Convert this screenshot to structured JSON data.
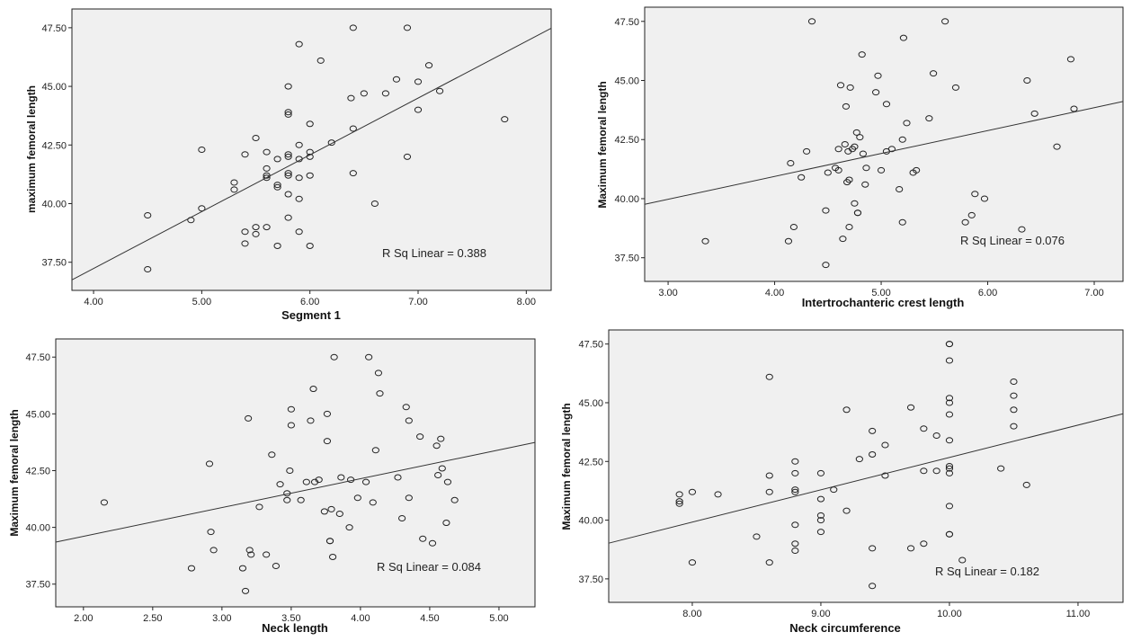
{
  "colors": {
    "plot_bg": "#f0f0f0",
    "point_stroke": "#222222",
    "fit_line": "#333333",
    "frame": "#222222"
  },
  "chart_data": [
    {
      "type": "scatter",
      "xlabel": "Segment 1",
      "ylabel": "maximum femoral length",
      "xlim": [
        3.8,
        8.23
      ],
      "ylim": [
        36.3,
        48.3
      ],
      "xticks": [
        4.0,
        5.0,
        6.0,
        7.0,
        8.0
      ],
      "xtick_labels": [
        "4.00",
        "5.00",
        "6.00",
        "7.00",
        "8.00"
      ],
      "yticks": [
        37.5,
        40.0,
        42.5,
        45.0,
        47.5
      ],
      "ytick_labels": [
        "37.50",
        "40.00",
        "42.50",
        "45.00",
        "47.50"
      ],
      "fit": {
        "x": [
          3.8,
          8.23
        ],
        "y": [
          36.75,
          47.48
        ]
      },
      "annotation": "R Sq Linear = 0.388",
      "points": [
        [
          4.5,
          37.2
        ],
        [
          4.5,
          39.5
        ],
        [
          4.9,
          39.3
        ],
        [
          5.0,
          39.8
        ],
        [
          5.0,
          42.3
        ],
        [
          5.3,
          40.9
        ],
        [
          5.3,
          40.6
        ],
        [
          5.4,
          38.8
        ],
        [
          5.4,
          38.3
        ],
        [
          5.4,
          42.1
        ],
        [
          5.5,
          42.8
        ],
        [
          5.5,
          38.7
        ],
        [
          5.5,
          39.0
        ],
        [
          5.6,
          39.0
        ],
        [
          5.6,
          41.1
        ],
        [
          5.6,
          41.2
        ],
        [
          5.6,
          41.5
        ],
        [
          5.6,
          42.2
        ],
        [
          5.7,
          38.2
        ],
        [
          5.7,
          40.7
        ],
        [
          5.7,
          40.8
        ],
        [
          5.7,
          41.9
        ],
        [
          5.8,
          39.4
        ],
        [
          5.8,
          40.4
        ],
        [
          5.8,
          41.2
        ],
        [
          5.8,
          41.3
        ],
        [
          5.8,
          42.0
        ],
        [
          5.8,
          42.1
        ],
        [
          5.8,
          43.8
        ],
        [
          5.8,
          43.9
        ],
        [
          5.8,
          45.0
        ],
        [
          5.9,
          38.8
        ],
        [
          5.9,
          40.2
        ],
        [
          5.9,
          41.1
        ],
        [
          5.9,
          41.9
        ],
        [
          5.9,
          42.5
        ],
        [
          5.9,
          46.8
        ],
        [
          6.0,
          38.2
        ],
        [
          6.0,
          41.2
        ],
        [
          6.0,
          42.0
        ],
        [
          6.0,
          42.2
        ],
        [
          6.0,
          43.4
        ],
        [
          6.1,
          46.1
        ],
        [
          6.2,
          42.6
        ],
        [
          6.4,
          41.3
        ],
        [
          6.4,
          43.2
        ],
        [
          6.4,
          47.5
        ],
        [
          6.38,
          44.5
        ],
        [
          6.5,
          44.7
        ],
        [
          6.6,
          40.0
        ],
        [
          6.7,
          44.7
        ],
        [
          6.8,
          45.3
        ],
        [
          6.9,
          42.0
        ],
        [
          6.9,
          47.5
        ],
        [
          7.0,
          44.0
        ],
        [
          7.0,
          45.2
        ],
        [
          7.1,
          45.9
        ],
        [
          7.2,
          44.8
        ],
        [
          7.8,
          43.6
        ]
      ]
    },
    {
      "type": "scatter",
      "xlabel": "Intertrochanteric crest length",
      "ylabel": "Maximum femoral length",
      "xlim": [
        2.78,
        7.27
      ],
      "ylim": [
        36.5,
        48.1
      ],
      "xticks": [
        3.0,
        4.0,
        5.0,
        6.0,
        7.0
      ],
      "xtick_labels": [
        "3.00",
        "4.00",
        "5.00",
        "6.00",
        "7.00"
      ],
      "yticks": [
        37.5,
        40.0,
        42.5,
        45.0,
        47.5
      ],
      "ytick_labels": [
        "37.50",
        "40.00",
        "42.50",
        "45.00",
        "47.50"
      ],
      "fit": {
        "x": [
          2.78,
          7.27
        ],
        "y": [
          39.76,
          44.11
        ]
      },
      "annotation": "R Sq Linear = 0.076",
      "points": [
        [
          3.35,
          38.2
        ],
        [
          4.13,
          38.2
        ],
        [
          4.15,
          41.5
        ],
        [
          4.18,
          38.8
        ],
        [
          4.25,
          40.9
        ],
        [
          4.3,
          42.0
        ],
        [
          4.35,
          47.5
        ],
        [
          4.48,
          37.2
        ],
        [
          4.48,
          39.5
        ],
        [
          4.5,
          41.1
        ],
        [
          4.57,
          41.3
        ],
        [
          4.6,
          41.2
        ],
        [
          4.6,
          42.1
        ],
        [
          4.62,
          44.8
        ],
        [
          4.64,
          38.3
        ],
        [
          4.66,
          42.3
        ],
        [
          4.67,
          43.9
        ],
        [
          4.68,
          40.7
        ],
        [
          4.69,
          42.0
        ],
        [
          4.7,
          40.8
        ],
        [
          4.7,
          38.8
        ],
        [
          4.71,
          44.7
        ],
        [
          4.73,
          42.1
        ],
        [
          4.75,
          39.8
        ],
        [
          4.75,
          42.2
        ],
        [
          4.77,
          42.8
        ],
        [
          4.78,
          39.4
        ],
        [
          4.78,
          39.4
        ],
        [
          4.8,
          42.6
        ],
        [
          4.82,
          46.1
        ],
        [
          4.83,
          41.9
        ],
        [
          4.85,
          40.6
        ],
        [
          4.86,
          41.3
        ],
        [
          4.95,
          44.5
        ],
        [
          4.97,
          45.2
        ],
        [
          5.0,
          41.2
        ],
        [
          5.05,
          44.0
        ],
        [
          5.05,
          42.0
        ],
        [
          5.1,
          42.1
        ],
        [
          5.17,
          40.4
        ],
        [
          5.2,
          42.5
        ],
        [
          5.2,
          39.0
        ],
        [
          5.21,
          46.8
        ],
        [
          5.24,
          43.2
        ],
        [
          5.3,
          41.1
        ],
        [
          5.33,
          41.2
        ],
        [
          5.45,
          43.4
        ],
        [
          5.49,
          45.3
        ],
        [
          5.6,
          47.5
        ],
        [
          5.7,
          44.7
        ],
        [
          5.79,
          39.0
        ],
        [
          5.85,
          39.3
        ],
        [
          5.88,
          40.2
        ],
        [
          5.97,
          40.0
        ],
        [
          6.32,
          38.7
        ],
        [
          6.37,
          45.0
        ],
        [
          6.44,
          43.6
        ],
        [
          6.65,
          42.2
        ],
        [
          6.78,
          45.9
        ],
        [
          6.81,
          43.8
        ]
      ]
    },
    {
      "type": "scatter",
      "xlabel": "Neck length",
      "ylabel": "Maximum femoral length",
      "xlim": [
        1.8,
        5.26
      ],
      "ylim": [
        36.5,
        48.3
      ],
      "xticks": [
        2.0,
        2.5,
        3.0,
        3.5,
        4.0,
        4.5,
        5.0
      ],
      "xtick_labels": [
        "2.00",
        "2.50",
        "3.00",
        "3.50",
        "4.00",
        "4.50",
        "5.00"
      ],
      "yticks": [
        37.5,
        40.0,
        42.5,
        45.0,
        47.5
      ],
      "ytick_labels": [
        "37.50",
        "40.00",
        "42.50",
        "45.00",
        "47.50"
      ],
      "fit": {
        "x": [
          1.8,
          5.26
        ],
        "y": [
          39.35,
          43.74
        ]
      },
      "annotation": "R Sq Linear = 0.084",
      "points": [
        [
          2.15,
          41.1
        ],
        [
          2.78,
          38.2
        ],
        [
          2.91,
          42.8
        ],
        [
          2.92,
          39.8
        ],
        [
          2.94,
          39.0
        ],
        [
          3.15,
          38.2
        ],
        [
          3.17,
          37.2
        ],
        [
          3.19,
          44.8
        ],
        [
          3.2,
          39.0
        ],
        [
          3.21,
          38.8
        ],
        [
          3.27,
          40.9
        ],
        [
          3.32,
          38.8
        ],
        [
          3.36,
          43.2
        ],
        [
          3.39,
          38.3
        ],
        [
          3.42,
          41.9
        ],
        [
          3.47,
          41.2
        ],
        [
          3.47,
          41.5
        ],
        [
          3.49,
          42.5
        ],
        [
          3.5,
          45.2
        ],
        [
          3.5,
          44.5
        ],
        [
          3.57,
          41.2
        ],
        [
          3.61,
          42.0
        ],
        [
          3.64,
          44.7
        ],
        [
          3.66,
          46.1
        ],
        [
          3.67,
          42.0
        ],
        [
          3.7,
          42.1
        ],
        [
          3.74,
          40.7
        ],
        [
          3.76,
          43.8
        ],
        [
          3.76,
          45.0
        ],
        [
          3.78,
          39.4
        ],
        [
          3.78,
          39.4
        ],
        [
          3.79,
          40.8
        ],
        [
          3.8,
          38.7
        ],
        [
          3.81,
          47.5
        ],
        [
          3.85,
          40.6
        ],
        [
          3.86,
          42.2
        ],
        [
          3.92,
          40.0
        ],
        [
          3.93,
          42.1
        ],
        [
          3.98,
          41.3
        ],
        [
          4.04,
          42.0
        ],
        [
          4.06,
          47.5
        ],
        [
          4.09,
          41.1
        ],
        [
          4.11,
          43.4
        ],
        [
          4.13,
          46.8
        ],
        [
          4.14,
          45.9
        ],
        [
          4.27,
          42.2
        ],
        [
          4.3,
          40.4
        ],
        [
          4.33,
          45.3
        ],
        [
          4.35,
          44.7
        ],
        [
          4.35,
          41.3
        ],
        [
          4.43,
          44.0
        ],
        [
          4.45,
          39.5
        ],
        [
          4.52,
          39.3
        ],
        [
          4.55,
          43.6
        ],
        [
          4.56,
          42.3
        ],
        [
          4.58,
          43.9
        ],
        [
          4.59,
          42.6
        ],
        [
          4.62,
          40.2
        ],
        [
          4.63,
          42.0
        ],
        [
          4.68,
          41.2
        ]
      ]
    },
    {
      "type": "scatter",
      "xlabel": "Neck circumference",
      "ylabel": "Maximum femoral length",
      "xlim": [
        7.35,
        11.35
      ],
      "ylim": [
        36.5,
        48.1
      ],
      "xticks": [
        8.0,
        9.0,
        10.0,
        11.0
      ],
      "xtick_labels": [
        "8.00",
        "9.00",
        "10.00",
        "11.00"
      ],
      "yticks": [
        37.5,
        40.0,
        42.5,
        45.0,
        47.5
      ],
      "ytick_labels": [
        "37.50",
        "40.00",
        "42.50",
        "45.00",
        "47.50"
      ],
      "fit": {
        "x": [
          7.35,
          11.35
        ],
        "y": [
          39.02,
          44.53
        ]
      },
      "annotation": "R Sq Linear = 0.182",
      "points": [
        [
          7.9,
          41.1
        ],
        [
          7.9,
          40.8
        ],
        [
          7.9,
          40.7
        ],
        [
          8.0,
          41.2
        ],
        [
          8.0,
          38.2
        ],
        [
          8.2,
          41.1
        ],
        [
          8.5,
          39.3
        ],
        [
          8.6,
          41.9
        ],
        [
          8.6,
          38.2
        ],
        [
          8.6,
          41.2
        ],
        [
          8.6,
          46.1
        ],
        [
          8.8,
          38.7
        ],
        [
          8.8,
          39.0
        ],
        [
          8.8,
          39.8
        ],
        [
          8.8,
          41.2
        ],
        [
          8.8,
          41.3
        ],
        [
          8.8,
          42.0
        ],
        [
          8.8,
          42.5
        ],
        [
          9.0,
          39.5
        ],
        [
          9.0,
          40.0
        ],
        [
          9.0,
          40.2
        ],
        [
          9.0,
          40.9
        ],
        [
          9.0,
          42.0
        ],
        [
          9.1,
          41.3
        ],
        [
          9.2,
          40.4
        ],
        [
          9.2,
          44.7
        ],
        [
          9.3,
          42.6
        ],
        [
          9.4,
          37.2
        ],
        [
          9.4,
          38.8
        ],
        [
          9.4,
          42.8
        ],
        [
          9.4,
          43.8
        ],
        [
          9.5,
          41.9
        ],
        [
          9.5,
          43.2
        ],
        [
          9.7,
          38.8
        ],
        [
          9.7,
          44.8
        ],
        [
          9.8,
          39.0
        ],
        [
          9.8,
          42.1
        ],
        [
          9.8,
          43.9
        ],
        [
          9.9,
          42.1
        ],
        [
          9.9,
          43.6
        ],
        [
          10.0,
          39.4
        ],
        [
          10.0,
          39.4
        ],
        [
          10.0,
          40.6
        ],
        [
          10.0,
          42.0
        ],
        [
          10.0,
          42.2
        ],
        [
          10.0,
          42.3
        ],
        [
          10.0,
          43.4
        ],
        [
          10.0,
          44.5
        ],
        [
          10.0,
          45.0
        ],
        [
          10.0,
          45.2
        ],
        [
          10.0,
          46.8
        ],
        [
          10.0,
          47.5
        ],
        [
          10.0,
          47.5
        ],
        [
          10.1,
          38.3
        ],
        [
          10.4,
          42.2
        ],
        [
          10.5,
          44.0
        ],
        [
          10.5,
          44.7
        ],
        [
          10.5,
          45.3
        ],
        [
          10.5,
          45.9
        ],
        [
          10.6,
          41.5
        ]
      ]
    }
  ]
}
